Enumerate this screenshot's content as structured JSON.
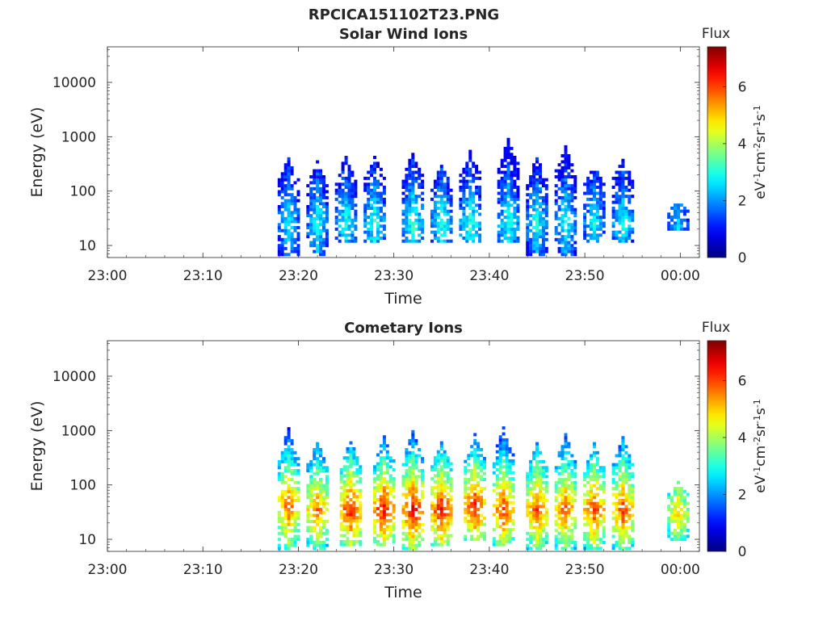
{
  "figure_title": "RPCICA151102T23.PNG",
  "chart_data": [
    {
      "type": "heatmap",
      "title": "Solar Wind Ions",
      "xlabel": "Time",
      "ylabel": "Energy (eV)",
      "x_ticks": [
        "23:00",
        "23:10",
        "23:20",
        "23:30",
        "23:40",
        "23:50",
        "00:00"
      ],
      "xlim": [
        "23:00",
        "00:02"
      ],
      "y_scale": "log",
      "y_ticks": [
        "10",
        "100",
        "1000",
        "10000"
      ],
      "ylim": [
        6,
        45000
      ],
      "colorbar": {
        "title": "Flux",
        "label": "eV-1cm-2sr-1s-1",
        "ticks": [
          "0",
          "2",
          "4",
          "6"
        ],
        "range": [
          0,
          7.4
        ],
        "colormap": "jet"
      },
      "sweeps": [
        {
          "time": "23:19",
          "emin": 6,
          "emax": 450,
          "peak": 2.8,
          "peak_energy": 25
        },
        {
          "time": "23:22",
          "emin": 6,
          "emax": 350,
          "peak": 2.9,
          "peak_energy": 25
        },
        {
          "time": "23:25",
          "emin": 12,
          "emax": 450,
          "peak": 3.0,
          "peak_energy": 25
        },
        {
          "time": "23:28",
          "emin": 12,
          "emax": 450,
          "peak": 3.1,
          "peak_energy": 25
        },
        {
          "time": "23:32",
          "emin": 12,
          "emax": 500,
          "peak": 3.2,
          "peak_energy": 25
        },
        {
          "time": "23:35",
          "emin": 12,
          "emax": 300,
          "peak": 3.1,
          "peak_energy": 25
        },
        {
          "time": "23:38",
          "emin": 12,
          "emax": 550,
          "peak": 3.2,
          "peak_energy": 25
        },
        {
          "time": "23:42",
          "emin": 12,
          "emax": 900,
          "peak": 3.1,
          "peak_energy": 25
        },
        {
          "time": "23:45",
          "emin": 6,
          "emax": 450,
          "peak": 3.0,
          "peak_energy": 25
        },
        {
          "time": "23:48",
          "emin": 6,
          "emax": 700,
          "peak": 3.0,
          "peak_energy": 25
        },
        {
          "time": "23:51",
          "emin": 12,
          "emax": 300,
          "peak": 2.9,
          "peak_energy": 25
        },
        {
          "time": "23:54",
          "emin": 12,
          "emax": 400,
          "peak": 3.0,
          "peak_energy": 25
        },
        {
          "time": "23:59.8",
          "emin": 20,
          "emax": 60,
          "peak": 2.5,
          "peak_energy": 30
        }
      ]
    },
    {
      "type": "heatmap",
      "title": "Cometary Ions",
      "xlabel": "Time",
      "ylabel": "Energy (eV)",
      "x_ticks": [
        "23:00",
        "23:10",
        "23:20",
        "23:30",
        "23:40",
        "23:50",
        "00:00"
      ],
      "xlim": [
        "23:00",
        "00:02"
      ],
      "y_scale": "log",
      "y_ticks": [
        "10",
        "100",
        "1000",
        "10000"
      ],
      "ylim": [
        6,
        45000
      ],
      "colorbar": {
        "title": "Flux",
        "label": "eV-1cm-2sr-1s-1",
        "ticks": [
          "0",
          "2",
          "4",
          "6"
        ],
        "range": [
          0,
          7.4
        ],
        "colormap": "jet"
      },
      "sweeps": [
        {
          "time": "23:19",
          "emin": 6,
          "emax": 1100,
          "peak": 5.9,
          "peak_energy": 40
        },
        {
          "time": "23:22",
          "emin": 6,
          "emax": 700,
          "peak": 5.7,
          "peak_energy": 35
        },
        {
          "time": "23:25.5",
          "emin": 8,
          "emax": 650,
          "peak": 6.4,
          "peak_energy": 35
        },
        {
          "time": "23:29",
          "emin": 8,
          "emax": 800,
          "peak": 6.5,
          "peak_energy": 35
        },
        {
          "time": "23:32",
          "emin": 6,
          "emax": 1000,
          "peak": 6.6,
          "peak_energy": 35
        },
        {
          "time": "23:35",
          "emin": 8,
          "emax": 700,
          "peak": 6.5,
          "peak_energy": 35
        },
        {
          "time": "23:38.5",
          "emin": 10,
          "emax": 900,
          "peak": 6.4,
          "peak_energy": 40
        },
        {
          "time": "23:41.5",
          "emin": 8,
          "emax": 1200,
          "peak": 6.2,
          "peak_energy": 35
        },
        {
          "time": "23:45",
          "emin": 6,
          "emax": 600,
          "peak": 6.0,
          "peak_energy": 35
        },
        {
          "time": "23:48",
          "emin": 6,
          "emax": 900,
          "peak": 5.9,
          "peak_energy": 35
        },
        {
          "time": "23:51",
          "emin": 6,
          "emax": 600,
          "peak": 6.1,
          "peak_energy": 35
        },
        {
          "time": "23:54",
          "emin": 6,
          "emax": 800,
          "peak": 6.1,
          "peak_energy": 35
        },
        {
          "time": "23:59.8",
          "emin": 10,
          "emax": 120,
          "peak": 5.0,
          "peak_energy": 30
        }
      ]
    }
  ]
}
